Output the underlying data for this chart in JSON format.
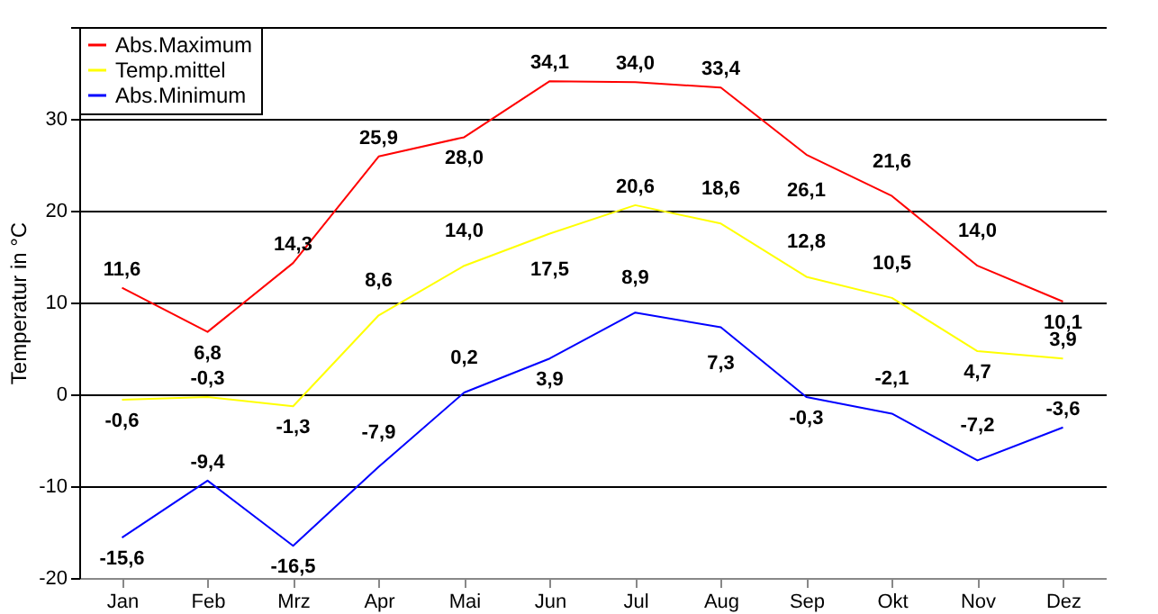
{
  "chart_data": {
    "type": "line",
    "ylabel": "Temperatur in °C",
    "categories": [
      "Jan",
      "Feb",
      "Mrz",
      "Apr",
      "Mai",
      "Jun",
      "Jul",
      "Aug",
      "Sep",
      "Okt",
      "Nov",
      "Dez"
    ],
    "series": [
      {
        "name": "Abs.Maximum",
        "color": "#ff0000",
        "values": [
          11.6,
          6.8,
          14.3,
          25.9,
          28.0,
          34.1,
          34.0,
          33.4,
          26.1,
          21.6,
          14.0,
          10.1
        ],
        "value_labels": [
          "11,6",
          "6,8",
          "14,3",
          "25,9",
          "28,0",
          "34,1",
          "34,0",
          "33,4",
          "26,1",
          "21,6",
          "14,0",
          "10,1"
        ]
      },
      {
        "name": "Temp.mittel",
        "color": "#ffff00",
        "values": [
          -0.6,
          -0.3,
          -1.3,
          8.6,
          14.0,
          17.5,
          20.6,
          18.6,
          12.8,
          10.5,
          4.7,
          3.9
        ],
        "value_labels": [
          "-0,6",
          "-0,3",
          "-1,3",
          "8,6",
          "14,0",
          "17,5",
          "20,6",
          "18,6",
          "12,8",
          "10,5",
          "4,7",
          "3,9"
        ]
      },
      {
        "name": "Abs.Minimum",
        "color": "#0000ff",
        "values": [
          -15.6,
          -9.4,
          -16.5,
          -7.9,
          0.2,
          3.9,
          8.9,
          7.3,
          -0.3,
          -2.1,
          -7.2,
          -3.6
        ],
        "value_labels": [
          "-15,6",
          "-9,4",
          "-16,5",
          "-7,9",
          "0,2",
          "3,9",
          "8,9",
          "7,3",
          "-0,3",
          "-2,1",
          "-7,2",
          "-3,6"
        ]
      }
    ],
    "ylim": [
      -20,
      40
    ],
    "yticks": [
      -20,
      -10,
      0,
      10,
      20,
      30,
      {
        "value": 40,
        "label": null
      }
    ],
    "grid": "y",
    "legend": "top left",
    "marker": "none",
    "line_style": "solid"
  }
}
